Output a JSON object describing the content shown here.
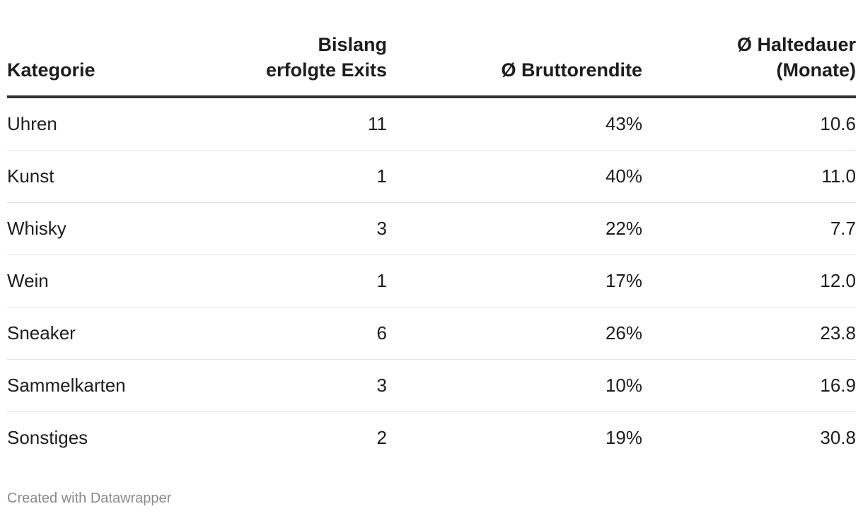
{
  "chart_data": {
    "type": "table",
    "columns": [
      {
        "label": "Kategorie",
        "align": "left"
      },
      {
        "label": "Bislang erfolgte Exits",
        "align": "right"
      },
      {
        "label": "Ø Bruttorendite",
        "align": "right"
      },
      {
        "label": "Ø Haltedauer (Monate)",
        "align": "right"
      }
    ],
    "rows": [
      [
        "Uhren",
        "11",
        "43%",
        "10.6"
      ],
      [
        "Kunst",
        "1",
        "40%",
        "11.0"
      ],
      [
        "Whisky",
        "3",
        "22%",
        "7.7"
      ],
      [
        "Wein",
        "1",
        "17%",
        "12.0"
      ],
      [
        "Sneaker",
        "6",
        "26%",
        "23.8"
      ],
      [
        "Sammelkarten",
        "3",
        "10%",
        "16.9"
      ],
      [
        "Sonstiges",
        "2",
        "19%",
        "30.8"
      ]
    ]
  },
  "header": {
    "col1": "Kategorie",
    "col2_line1": "Bislang",
    "col2_line2": "erfolgte Exits",
    "col3": "Ø Bruttorendite",
    "col4_line1": "Ø Haltedauer",
    "col4_line2": "(Monate)"
  },
  "footer": {
    "credit": "Created with Datawrapper"
  },
  "colors": {
    "text": "#1d1d1d",
    "header_rule": "#333333",
    "row_rule": "#e2e2e2",
    "footer_text": "#8a8a8a"
  }
}
